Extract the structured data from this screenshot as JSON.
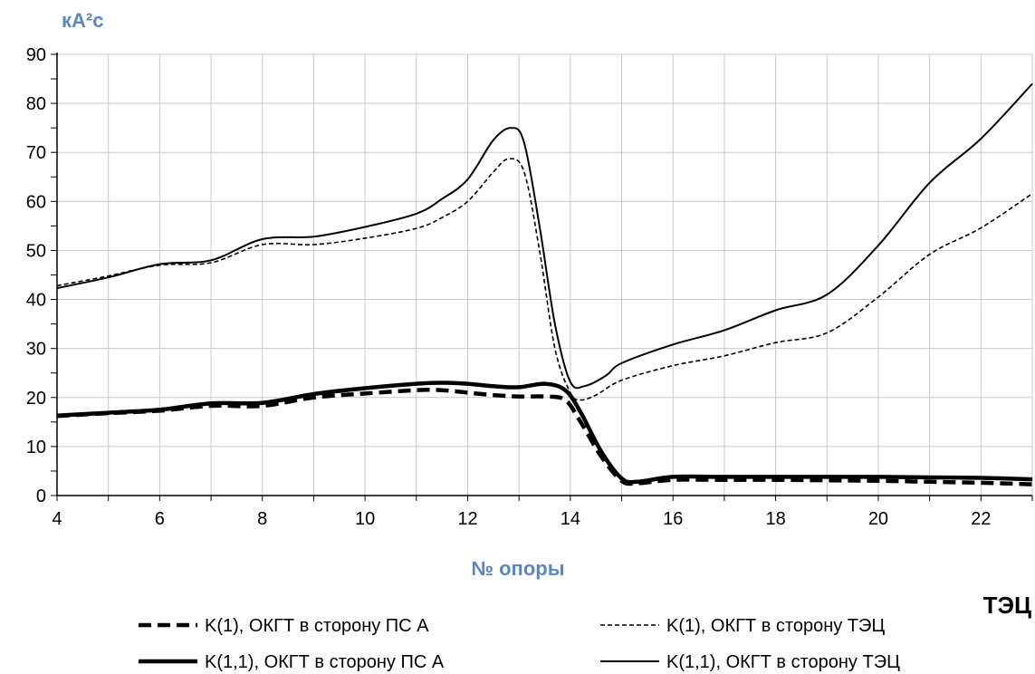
{
  "chart_data": {
    "type": "line",
    "y_unit": "кА²с",
    "xlabel": "№ опоры",
    "x_end_label": "ТЭЦ",
    "xlim": [
      4,
      23
    ],
    "ylim": [
      0,
      90
    ],
    "x_ticks": [
      4,
      6,
      8,
      10,
      12,
      14,
      16,
      18,
      20,
      22
    ],
    "y_ticks": [
      0,
      10,
      20,
      30,
      40,
      50,
      60,
      70,
      80,
      90
    ],
    "grid": true,
    "legend_position": "bottom",
    "series": [
      {
        "name": "K(1), ОКГТ в сторону ПС А",
        "style": "thick-dashed",
        "x": [
          4,
          5,
          6,
          7,
          8,
          9,
          10,
          11,
          11.5,
          12,
          12.5,
          13,
          13.5,
          13.9,
          14.2,
          14.6,
          15,
          15.3,
          16,
          17,
          18,
          19,
          20,
          21,
          22,
          23
        ],
        "y": [
          16.2,
          16.8,
          17.3,
          18.3,
          18.3,
          20,
          20.8,
          21.5,
          21.5,
          21,
          20.5,
          20.2,
          20.2,
          19.5,
          15,
          8,
          3,
          2.5,
          3.2,
          3.2,
          3.2,
          3.1,
          3,
          2.8,
          2.6,
          2.3
        ]
      },
      {
        "name": "K(1), ОКГТ в сторону ТЭЦ",
        "style": "thin-dashed",
        "x": [
          4,
          5,
          6,
          7,
          8,
          9,
          10,
          11,
          11.5,
          12,
          12.5,
          12.8,
          13.1,
          13.4,
          13.7,
          14,
          14.2,
          14.5,
          15,
          16,
          17,
          18,
          19,
          20,
          21,
          22,
          23
        ],
        "y": [
          42.8,
          44.8,
          47,
          47.5,
          51.2,
          51.2,
          52.5,
          54.5,
          56.7,
          60,
          66,
          68.7,
          66,
          50,
          30,
          21,
          19.5,
          20.5,
          23.5,
          26.5,
          28.5,
          31.2,
          33.2,
          40.5,
          49.2,
          54.6,
          61.6
        ]
      },
      {
        "name": "K(1,1), ОКГТ в сторону ПС А",
        "style": "thick-solid",
        "x": [
          4,
          5,
          6,
          7,
          8,
          9,
          10,
          11,
          11.5,
          12,
          12.5,
          13,
          13.5,
          13.9,
          14.2,
          14.6,
          15,
          15.3,
          16,
          17,
          18,
          19,
          20,
          21,
          22,
          23
        ],
        "y": [
          16.3,
          16.9,
          17.5,
          18.8,
          18.9,
          20.7,
          21.9,
          22.8,
          23,
          22.8,
          22.3,
          22.1,
          22.8,
          21.5,
          17,
          9,
          3.5,
          2.8,
          3.8,
          3.8,
          3.8,
          3.8,
          3.8,
          3.7,
          3.6,
          3.3
        ]
      },
      {
        "name": "K(1,1), ОКГТ в сторону ТЭЦ",
        "style": "thin-solid",
        "x": [
          4,
          5,
          6,
          7,
          8,
          9,
          10,
          11,
          11.5,
          12,
          12.5,
          12.85,
          13.1,
          13.4,
          13.7,
          14,
          14.3,
          14.7,
          15,
          16,
          17,
          18,
          19,
          20,
          21,
          22,
          23
        ],
        "y": [
          42.3,
          44.5,
          47.2,
          48,
          52.3,
          52.8,
          54.8,
          57.5,
          60.5,
          64.5,
          72.5,
          75,
          72,
          55,
          35,
          23.2,
          22.4,
          24.5,
          27,
          30.8,
          33.7,
          37.8,
          41,
          51,
          63.8,
          72.8,
          84
        ]
      }
    ]
  }
}
